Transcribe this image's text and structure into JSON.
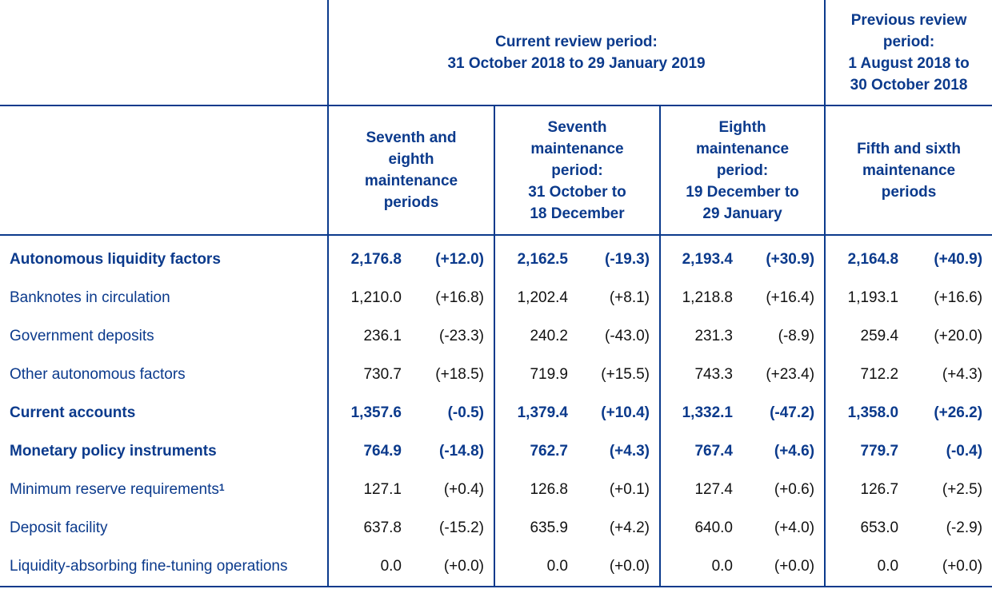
{
  "header": {
    "current_period_lines": [
      "Current review period:",
      "31 October 2018 to 29 January 2019"
    ],
    "previous_period_lines": [
      "Previous review",
      "period:",
      "1 August 2018 to",
      "30 October 2018"
    ],
    "sub_columns": [
      {
        "lines": [
          "Seventh and",
          "eighth",
          "maintenance",
          "periods"
        ]
      },
      {
        "lines": [
          "Seventh",
          "maintenance",
          "period:",
          "31 October to",
          "18 December"
        ]
      },
      {
        "lines": [
          "Eighth",
          "maintenance",
          "period:",
          "19 December to",
          "29 January"
        ]
      },
      {
        "lines": [
          "Fifth and sixth",
          "maintenance",
          "periods"
        ]
      }
    ]
  },
  "rows": [
    {
      "label": "Autonomous liquidity factors",
      "sup": "",
      "bold": true,
      "cells": [
        "2,176.8",
        "(+12.0)",
        "2,162.5",
        "(-19.3)",
        "2,193.4",
        "(+30.9)",
        "2,164.8",
        "(+40.9)"
      ]
    },
    {
      "label": "Banknotes in circulation",
      "sup": "",
      "bold": false,
      "cells": [
        "1,210.0",
        "(+16.8)",
        "1,202.4",
        "(+8.1)",
        "1,218.8",
        "(+16.4)",
        "1,193.1",
        "(+16.6)"
      ]
    },
    {
      "label": "Government deposits",
      "sup": "",
      "bold": false,
      "cells": [
        "236.1",
        "(-23.3)",
        "240.2",
        "(-43.0)",
        "231.3",
        "(-8.9)",
        "259.4",
        "(+20.0)"
      ]
    },
    {
      "label": "Other autonomous factors",
      "sup": "",
      "bold": false,
      "cells": [
        "730.7",
        "(+18.5)",
        "719.9",
        "(+15.5)",
        "743.3",
        "(+23.4)",
        "712.2",
        "(+4.3)"
      ]
    },
    {
      "label": "Current accounts",
      "sup": "",
      "bold": true,
      "cells": [
        "1,357.6",
        "(-0.5)",
        "1,379.4",
        "(+10.4)",
        "1,332.1",
        "(-47.2)",
        "1,358.0",
        "(+26.2)"
      ]
    },
    {
      "label": "Monetary policy instruments",
      "sup": "",
      "bold": true,
      "cells": [
        "764.9",
        "(-14.8)",
        "762.7",
        "(+4.3)",
        "767.4",
        "(+4.6)",
        "779.7",
        "(-0.4)"
      ]
    },
    {
      "label": "Minimum reserve requirements",
      "sup": "1",
      "bold": false,
      "cells": [
        "127.1",
        "(+0.4)",
        "126.8",
        "(+0.1)",
        "127.4",
        "(+0.6)",
        "126.7",
        "(+2.5)"
      ]
    },
    {
      "label": "Deposit facility",
      "sup": "",
      "bold": false,
      "cells": [
        "637.8",
        "(-15.2)",
        "635.9",
        "(+4.2)",
        "640.0",
        "(+4.0)",
        "653.0",
        "(-2.9)"
      ]
    },
    {
      "label": "Liquidity-absorbing fine-tuning operations",
      "sup": "",
      "bold": false,
      "cells": [
        "0.0",
        "(+0.0)",
        "0.0",
        "(+0.0)",
        "0.0",
        "(+0.0)",
        "0.0",
        "(+0.0)"
      ]
    }
  ]
}
